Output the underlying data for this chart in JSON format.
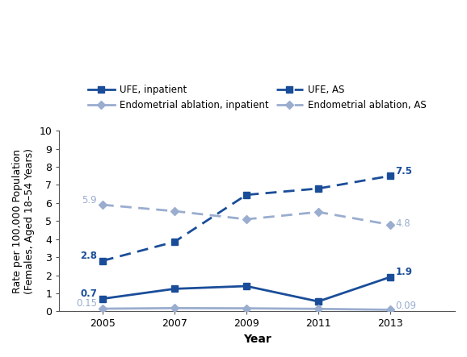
{
  "years": [
    2005,
    2007,
    2009,
    2011,
    2013
  ],
  "ufe_inpatient": [
    0.7,
    1.25,
    1.4,
    0.55,
    1.9
  ],
  "ufe_as": [
    2.8,
    3.85,
    6.45,
    6.8,
    7.5
  ],
  "endo_inpatient": [
    0.15,
    0.18,
    0.17,
    0.14,
    0.09
  ],
  "endo_as": [
    5.9,
    5.55,
    5.1,
    5.5,
    4.8
  ],
  "ufe_inpatient_color": "#1a4d99",
  "ufe_as_color": "#1a4d99",
  "endo_inpatient_color": "#9aadcf",
  "endo_as_color": "#9aadcf",
  "xlabel": "Year",
  "ylabel": "Rate per 100,000 Population\n(Females, Aged 18–54 Years)",
  "ylim": [
    0,
    10
  ],
  "yticks": [
    0,
    1,
    2,
    3,
    4,
    5,
    6,
    7,
    8,
    9,
    10
  ],
  "legend_labels": [
    "UFE, inpatient",
    "Endometrial ablation, inpatient",
    "UFE, AS",
    "Endometrial ablation, AS"
  ],
  "background_color": "#ffffff",
  "label_fs": 8.5,
  "lw": 2.0,
  "ms": 6
}
